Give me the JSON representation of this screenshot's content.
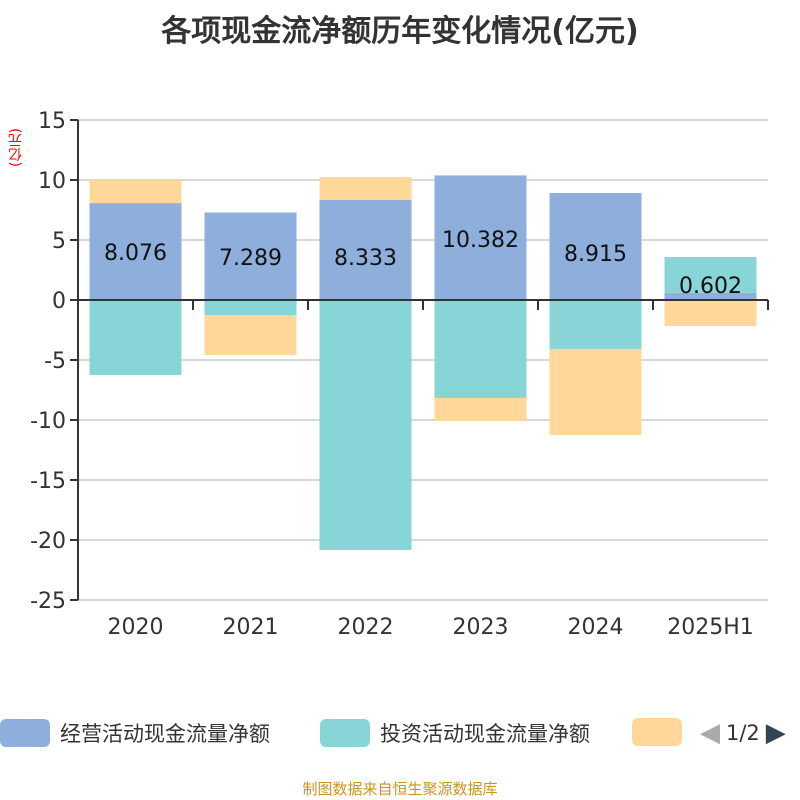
{
  "title": "各项现金流净额历年变化情况(亿元)",
  "footer": "制图数据来自恒生聚源数据库",
  "chart_data": {
    "type": "bar",
    "stacked": true,
    "title": "各项现金流净额历年变化情况(亿元)",
    "ylabel": "(亿元)",
    "categories": [
      "2020",
      "2021",
      "2022",
      "2023",
      "2024",
      "2025H1"
    ],
    "ylim": [
      -25,
      15
    ],
    "yticks": [
      15,
      10,
      5,
      0,
      -5,
      -10,
      -15,
      -20,
      -25
    ],
    "grid": true,
    "legend_placement": "bottom",
    "series": [
      {
        "name": "经营活动现金流量净额",
        "color": "#8eaedb",
        "values": [
          8.076,
          7.289,
          8.333,
          10.382,
          8.915,
          0.602
        ],
        "labels": [
          "8.076",
          "7.289",
          "8.333",
          "10.382",
          "8.915",
          "0.602"
        ]
      },
      {
        "name": "投资活动现金流量净额",
        "color": "#88d5d8",
        "values": [
          -6.25,
          -1.25,
          -20.83,
          -8.17,
          -4.08,
          2.98
        ]
      },
      {
        "name": "",
        "color": "#ffd899",
        "values": [
          1.92,
          -3.33,
          1.92,
          -1.91,
          -7.17,
          -2.17
        ]
      }
    ]
  },
  "legend": {
    "page": "1/2"
  }
}
